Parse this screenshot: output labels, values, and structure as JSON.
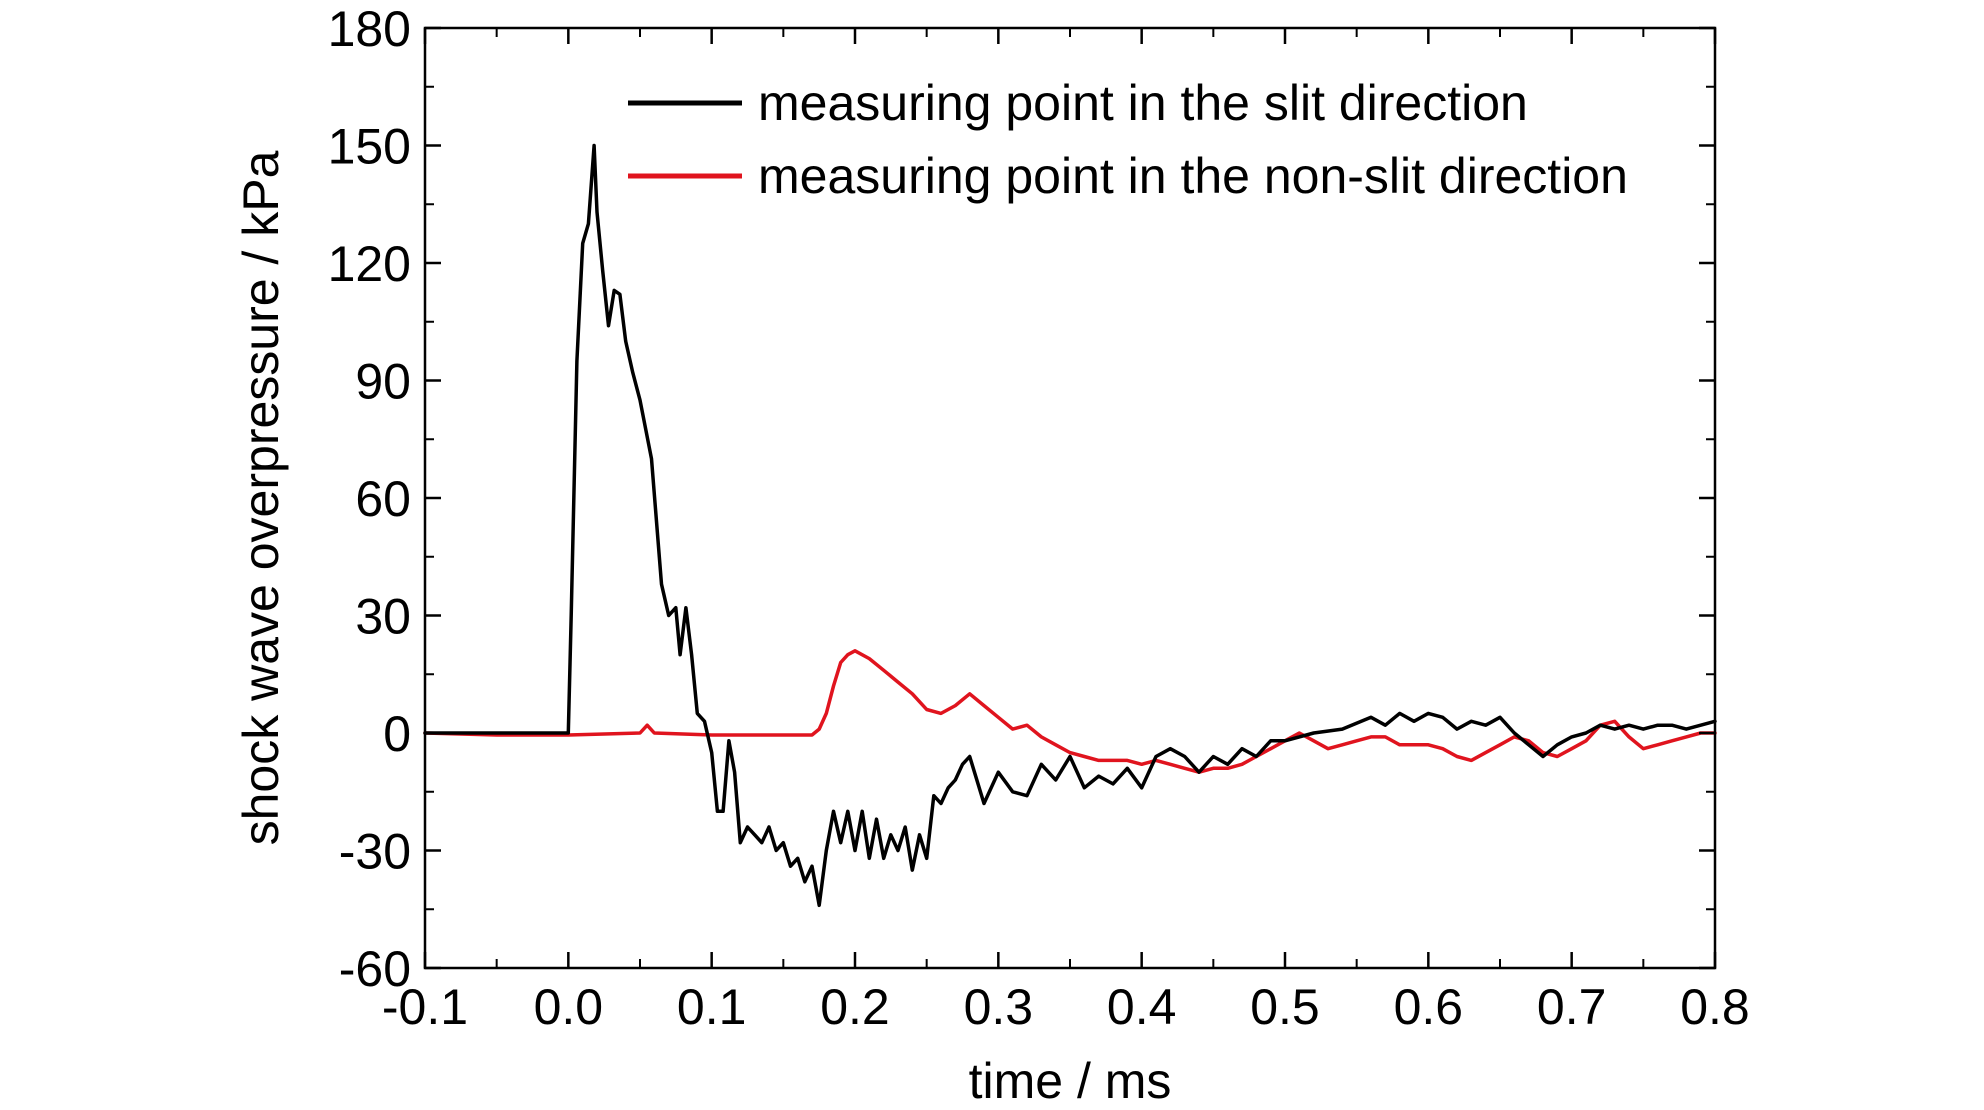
{
  "chart_data": {
    "type": "line",
    "title": "",
    "xlabel": "time / ms",
    "ylabel": "shock wave overpressure / kPa",
    "xlim": [
      -0.1,
      0.8
    ],
    "ylim": [
      -60,
      180
    ],
    "x_ticks": [
      "-0.1",
      "0.0",
      "0.1",
      "0.2",
      "0.3",
      "0.4",
      "0.5",
      "0.6",
      "0.7",
      "0.8"
    ],
    "y_ticks": [
      "-60",
      "-30",
      "0",
      "30",
      "60",
      "90",
      "120",
      "150",
      "180"
    ],
    "grid": false,
    "legend_position": "top-right",
    "series": [
      {
        "name": "measuring point in the slit direction",
        "color": "#000000",
        "x": [
          -0.1,
          -0.05,
          0.0,
          0.002,
          0.006,
          0.01,
          0.014,
          0.018,
          0.02,
          0.024,
          0.028,
          0.032,
          0.036,
          0.04,
          0.045,
          0.05,
          0.058,
          0.065,
          0.07,
          0.075,
          0.078,
          0.082,
          0.086,
          0.09,
          0.095,
          0.1,
          0.104,
          0.108,
          0.112,
          0.116,
          0.12,
          0.125,
          0.13,
          0.135,
          0.14,
          0.145,
          0.15,
          0.155,
          0.16,
          0.165,
          0.17,
          0.175,
          0.18,
          0.185,
          0.19,
          0.195,
          0.2,
          0.205,
          0.21,
          0.215,
          0.22,
          0.225,
          0.23,
          0.235,
          0.24,
          0.245,
          0.25,
          0.255,
          0.26,
          0.265,
          0.27,
          0.275,
          0.28,
          0.29,
          0.3,
          0.31,
          0.32,
          0.33,
          0.34,
          0.35,
          0.36,
          0.37,
          0.38,
          0.39,
          0.4,
          0.41,
          0.42,
          0.43,
          0.44,
          0.45,
          0.46,
          0.47,
          0.48,
          0.49,
          0.5,
          0.52,
          0.54,
          0.56,
          0.57,
          0.58,
          0.59,
          0.6,
          0.61,
          0.62,
          0.63,
          0.64,
          0.65,
          0.66,
          0.67,
          0.68,
          0.69,
          0.7,
          0.71,
          0.72,
          0.73,
          0.74,
          0.75,
          0.76,
          0.77,
          0.78,
          0.79,
          0.8
        ],
        "values": [
          0,
          0,
          0,
          30,
          95,
          125,
          130,
          150,
          133,
          118,
          104,
          113,
          112,
          100,
          92,
          85,
          70,
          38,
          30,
          32,
          20,
          32,
          20,
          5,
          3,
          -5,
          -20,
          -20,
          -2,
          -10,
          -28,
          -24,
          -26,
          -28,
          -24,
          -30,
          -28,
          -34,
          -32,
          -38,
          -34,
          -44,
          -30,
          -20,
          -28,
          -20,
          -30,
          -20,
          -32,
          -22,
          -32,
          -26,
          -30,
          -24,
          -35,
          -26,
          -32,
          -16,
          -18,
          -14,
          -12,
          -8,
          -6,
          -18,
          -10,
          -15,
          -16,
          -8,
          -12,
          -6,
          -14,
          -11,
          -13,
          -9,
          -14,
          -6,
          -4,
          -6,
          -10,
          -6,
          -8,
          -4,
          -6,
          -2,
          -2,
          0,
          1,
          4,
          2,
          5,
          3,
          5,
          4,
          1,
          3,
          2,
          4,
          0,
          -3,
          -6,
          -3,
          -1,
          0,
          2,
          1,
          2,
          1,
          2,
          2,
          1,
          2,
          3
        ]
      },
      {
        "name": "measuring point in the non-slit direction",
        "color": "#e0141e",
        "x": [
          -0.1,
          -0.05,
          0.0,
          0.05,
          0.055,
          0.06,
          0.1,
          0.15,
          0.17,
          0.175,
          0.18,
          0.185,
          0.19,
          0.195,
          0.2,
          0.21,
          0.22,
          0.23,
          0.24,
          0.25,
          0.26,
          0.27,
          0.28,
          0.29,
          0.3,
          0.31,
          0.32,
          0.33,
          0.34,
          0.35,
          0.36,
          0.37,
          0.38,
          0.39,
          0.4,
          0.41,
          0.42,
          0.43,
          0.44,
          0.45,
          0.46,
          0.47,
          0.48,
          0.49,
          0.5,
          0.51,
          0.52,
          0.53,
          0.54,
          0.55,
          0.56,
          0.57,
          0.58,
          0.59,
          0.6,
          0.61,
          0.62,
          0.63,
          0.64,
          0.65,
          0.66,
          0.67,
          0.68,
          0.69,
          0.7,
          0.71,
          0.72,
          0.73,
          0.74,
          0.75,
          0.76,
          0.77,
          0.78,
          0.79,
          0.8
        ],
        "values": [
          0,
          -0.5,
          -0.5,
          0,
          2,
          0,
          -0.5,
          -0.5,
          -0.5,
          1,
          5,
          12,
          18,
          20,
          21,
          19,
          16,
          13,
          10,
          6,
          5,
          7,
          10,
          7,
          4,
          1,
          2,
          -1,
          -3,
          -5,
          -6,
          -7,
          -7,
          -7,
          -8,
          -7,
          -8,
          -9,
          -10,
          -9,
          -9,
          -8,
          -6,
          -4,
          -2,
          0,
          -2,
          -4,
          -3,
          -2,
          -1,
          -1,
          -3,
          -3,
          -3,
          -4,
          -6,
          -7,
          -5,
          -3,
          -1,
          -2,
          -5,
          -6,
          -4,
          -2,
          2,
          3,
          -1,
          -4,
          -3,
          -2,
          -1,
          0,
          0
        ]
      }
    ]
  }
}
